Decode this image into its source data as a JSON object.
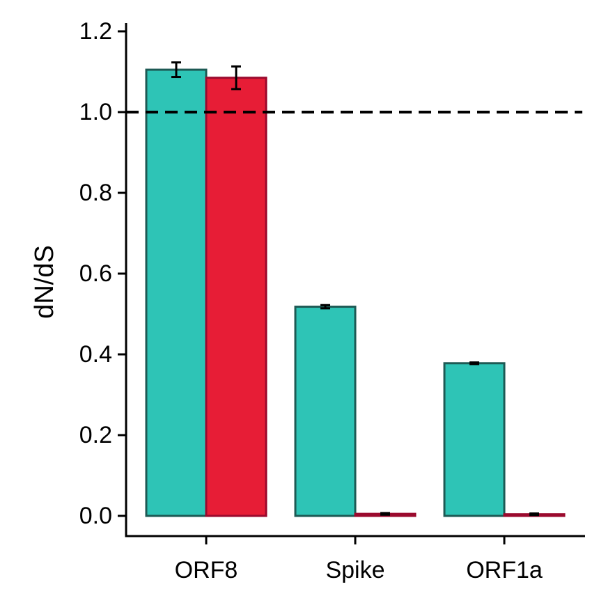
{
  "chart_data": {
    "type": "bar",
    "title": "",
    "xlabel": "",
    "ylabel": "dN/dS",
    "categories": [
      "ORF8",
      "Spike",
      "ORF1a"
    ],
    "ylim": [
      -0.05,
      1.22
    ],
    "yticks": [
      "0.0",
      "0.2",
      "0.4",
      "0.6",
      "0.8",
      "1.0",
      "1.2"
    ],
    "ytick_values": [
      0.0,
      0.2,
      0.4,
      0.6,
      0.8,
      1.0,
      1.2
    ],
    "reference_line": {
      "y": 1.0,
      "style": "dashed",
      "color": "#000000"
    },
    "grid": false,
    "legend": "none",
    "series": [
      {
        "values": [
          1.105,
          0.518,
          0.378
        ],
        "errors": [
          0.018,
          0.004,
          0.002
        ],
        "fill": "#2ec4b6",
        "edge": "#1d5a54"
      },
      {
        "values": [
          1.085,
          0.005,
          0.004
        ],
        "errors": [
          0.028,
          0.002,
          0.002
        ],
        "fill": "#e71d36",
        "edge": "#9b0a2e"
      }
    ]
  }
}
